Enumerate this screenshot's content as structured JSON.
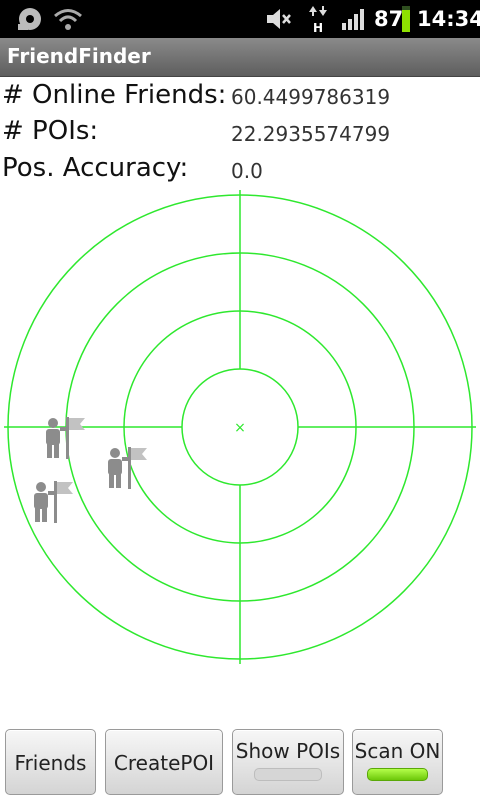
{
  "status_bar": {
    "battery_level": "87",
    "time": "14:34",
    "icons": [
      "sd-card-icon",
      "wifi-icon",
      "mute-icon",
      "data-transfer-icon",
      "signal-icon",
      "battery-icon"
    ],
    "data_type": "H"
  },
  "app": {
    "title": "FriendFinder"
  },
  "info": {
    "online_friends_label": "# Online Friends:",
    "online_friends_value": "60.4499786319",
    "pois_label": "# POIs:",
    "pois_value": "22.2935574799",
    "accuracy_label": "Pos. Accuracy:",
    "accuracy_value": "0.0"
  },
  "radar": {
    "color": "#2ee82e",
    "center_marker": "×",
    "marker_icon": "friend-with-flag-icon"
  },
  "buttons": {
    "friends": "Friends",
    "create_poi": "CreatePOI",
    "show_pois": "Show POIs",
    "scan": "Scan ON"
  },
  "colors": {
    "toggle_off": "#d6d6d6",
    "toggle_on": "#7fe014"
  }
}
